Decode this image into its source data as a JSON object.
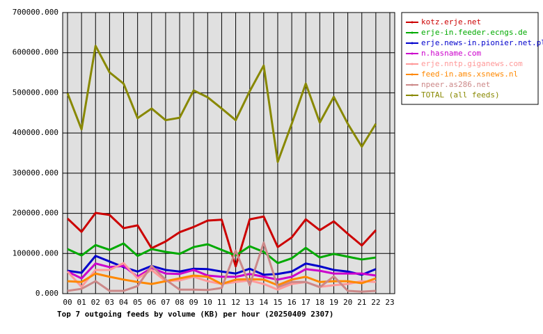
{
  "chart_data": {
    "type": "line",
    "title": "Top 7 outgoing feeds by volume (KB) per hour (20250409 2307)",
    "categories": [
      "00",
      "01",
      "02",
      "03",
      "04",
      "05",
      "06",
      "07",
      "08",
      "09",
      "10",
      "11",
      "12",
      "13",
      "14",
      "15",
      "16",
      "17",
      "18",
      "19",
      "20",
      "21",
      "22",
      "23"
    ],
    "ylim": [
      0,
      700000
    ],
    "yticks": [
      {
        "value": 0,
        "label": "0.000"
      },
      {
        "value": 100000,
        "label": "100000.000"
      },
      {
        "value": 200000,
        "label": "200000.000"
      },
      {
        "value": 300000,
        "label": "300000.000"
      },
      {
        "value": 400000,
        "label": "400000.000"
      },
      {
        "value": 500000,
        "label": "500000.000"
      },
      {
        "value": 600000,
        "label": "600000.000"
      },
      {
        "value": 700000,
        "label": "700000.000"
      }
    ],
    "grid": true,
    "legend": "right",
    "series": [
      {
        "name": "kotz.erje.net",
        "color": "#cc0000",
        "values": [
          187000,
          154000,
          201000,
          196000,
          163000,
          170000,
          113000,
          130000,
          153000,
          166000,
          182000,
          184000,
          68000,
          185000,
          192000,
          116000,
          140000,
          185000,
          158000,
          180000,
          149000,
          120000,
          158000,
          null
        ]
      },
      {
        "name": "erje-in.feeder.ecngs.de",
        "color": "#00aa00",
        "values": [
          111000,
          95000,
          121000,
          109000,
          125000,
          94000,
          111000,
          104000,
          99000,
          116000,
          123000,
          109000,
          95000,
          118000,
          104000,
          76000,
          88000,
          114000,
          90000,
          99000,
          92000,
          85000,
          90000,
          null
        ]
      },
      {
        "name": "erje.news-in.pionier.net.pl",
        "color": "#0000cc",
        "values": [
          57000,
          52000,
          94000,
          80000,
          66000,
          55000,
          69000,
          59000,
          55000,
          62000,
          61000,
          55000,
          50000,
          62000,
          47000,
          49000,
          55000,
          75000,
          68000,
          59000,
          55000,
          47000,
          61000,
          null
        ]
      },
      {
        "name": "n.hasname.com",
        "color": "#cc00cc",
        "values": [
          55000,
          38000,
          75000,
          66000,
          69000,
          42000,
          64000,
          50000,
          49000,
          59000,
          45000,
          42000,
          42000,
          49000,
          42000,
          35000,
          42000,
          61000,
          57000,
          50000,
          50000,
          50000,
          45000,
          null
        ]
      },
      {
        "name": "erje.nntp.giganews.com",
        "color": "#ff9999",
        "values": [
          55000,
          17000,
          59000,
          59000,
          76000,
          38000,
          59000,
          31000,
          33000,
          42000,
          31000,
          24000,
          29000,
          33000,
          24000,
          10000,
          24000,
          29000,
          17000,
          21000,
          24000,
          31000,
          29000,
          null
        ]
      },
      {
        "name": "feed-in.ams.xsnews.nl",
        "color": "#ff8800",
        "values": [
          31000,
          29000,
          50000,
          42000,
          35000,
          29000,
          24000,
          31000,
          38000,
          45000,
          42000,
          24000,
          35000,
          36000,
          35000,
          21000,
          35000,
          42000,
          29000,
          31000,
          31000,
          26000,
          38000,
          null
        ]
      },
      {
        "name": "npeer.as286.net",
        "color": "#cc8888",
        "values": [
          7000,
          12000,
          31000,
          7000,
          7000,
          19000,
          69000,
          35000,
          10000,
          10000,
          9000,
          14000,
          107000,
          21000,
          127000,
          16000,
          29000,
          29000,
          16000,
          43000,
          7000,
          5000,
          7000,
          null
        ]
      },
      {
        "name": "TOTAL (all feeds)",
        "color": "#888800",
        "values": [
          499000,
          409000,
          617000,
          551000,
          523000,
          437000,
          461000,
          432000,
          438000,
          506000,
          489000,
          461000,
          432000,
          504000,
          568000,
          328000,
          423000,
          523000,
          426000,
          490000,
          423000,
          366000,
          423000,
          null
        ]
      }
    ]
  }
}
